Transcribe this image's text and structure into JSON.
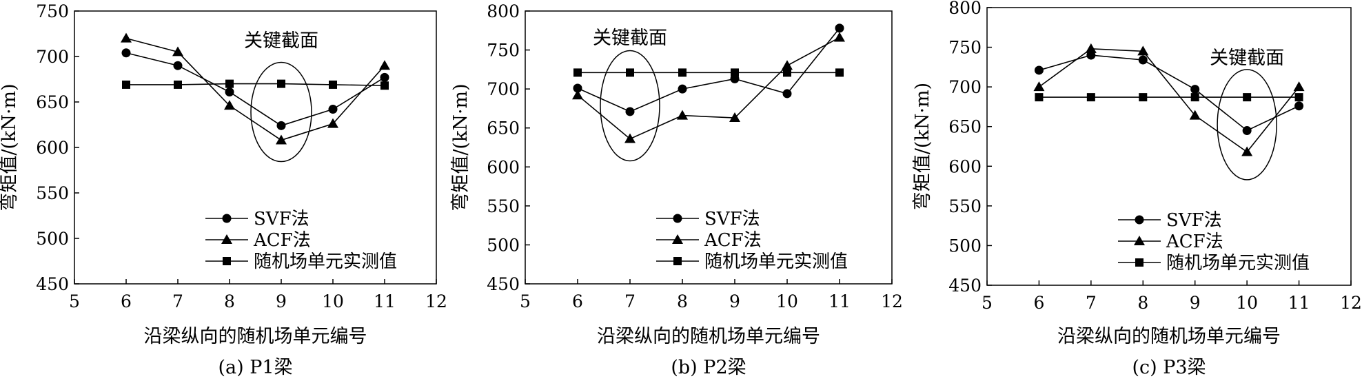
{
  "chart_data": [
    {
      "type": "line",
      "caption": "(a) P1梁",
      "xlabel": "沿梁纵向的随机场单元编号",
      "ylabel": "弯矩值/(kN·m)",
      "xlim": [
        5,
        12
      ],
      "ylim": [
        450,
        750
      ],
      "xticks": [
        5,
        6,
        7,
        8,
        9,
        10,
        11,
        12
      ],
      "yticks": [
        450,
        500,
        550,
        600,
        650,
        700,
        750
      ],
      "annotation": {
        "text": "关键截面",
        "x": 9
      },
      "legend_position": "bottom-right",
      "series": [
        {
          "name": "SVF法",
          "marker": "circle",
          "x": [
            6,
            7,
            8,
            9,
            10,
            11
          ],
          "y": [
            704,
            690,
            661,
            624,
            642,
            677
          ]
        },
        {
          "name": "ACF法",
          "marker": "triangle",
          "x": [
            6,
            7,
            8,
            9,
            10,
            11
          ],
          "y": [
            720,
            705,
            646,
            608,
            626,
            690
          ]
        },
        {
          "name": "随机场单元实测值",
          "marker": "square",
          "x": [
            6,
            7,
            8,
            9,
            10,
            11
          ],
          "y": [
            669,
            669,
            670,
            670,
            669,
            668
          ]
        }
      ]
    },
    {
      "type": "line",
      "caption": "(b) P2梁",
      "xlabel": "沿梁纵向的随机场单元编号",
      "ylabel": "弯矩值/(kN·m)",
      "xlim": [
        5,
        12
      ],
      "ylim": [
        450,
        800
      ],
      "xticks": [
        5,
        6,
        7,
        8,
        9,
        10,
        11,
        12
      ],
      "yticks": [
        450,
        500,
        550,
        600,
        650,
        700,
        750,
        800
      ],
      "annotation": {
        "text": "关键截面",
        "x": 7
      },
      "legend_position": "bottom-right",
      "series": [
        {
          "name": "SVF法",
          "marker": "circle",
          "x": [
            6,
            7,
            8,
            9,
            10,
            11
          ],
          "y": [
            701,
            671,
            700,
            713,
            694,
            778
          ]
        },
        {
          "name": "ACF法",
          "marker": "triangle",
          "x": [
            6,
            7,
            8,
            9,
            10,
            11
          ],
          "y": [
            692,
            636,
            666,
            663,
            730,
            766
          ]
        },
        {
          "name": "随机场单元实测值",
          "marker": "square",
          "x": [
            6,
            7,
            8,
            9,
            10,
            11
          ],
          "y": [
            721,
            721,
            721,
            721,
            721,
            721
          ]
        }
      ]
    },
    {
      "type": "line",
      "caption": "(c) P3梁",
      "xlabel": "沿梁纵向的随机场单元编号",
      "ylabel": "弯矩值/(kN·m)",
      "xlim": [
        5,
        12
      ],
      "ylim": [
        450,
        800
      ],
      "xticks": [
        5,
        6,
        7,
        8,
        9,
        10,
        11,
        12
      ],
      "yticks": [
        450,
        500,
        550,
        600,
        650,
        700,
        750,
        800
      ],
      "annotation": {
        "text": "关键截面",
        "x": 10
      },
      "legend_position": "bottom-right",
      "series": [
        {
          "name": "SVF法",
          "marker": "circle",
          "x": [
            6,
            7,
            8,
            9,
            10,
            11
          ],
          "y": [
            721,
            740,
            734,
            697,
            645,
            676
          ]
        },
        {
          "name": "ACF法",
          "marker": "triangle",
          "x": [
            6,
            7,
            8,
            9,
            10,
            11
          ],
          "y": [
            700,
            748,
            745,
            664,
            618,
            700
          ]
        },
        {
          "name": "随机场单元实测值",
          "marker": "square",
          "x": [
            6,
            7,
            8,
            9,
            10,
            11
          ],
          "y": [
            687,
            687,
            687,
            687,
            687,
            687
          ]
        }
      ]
    }
  ]
}
